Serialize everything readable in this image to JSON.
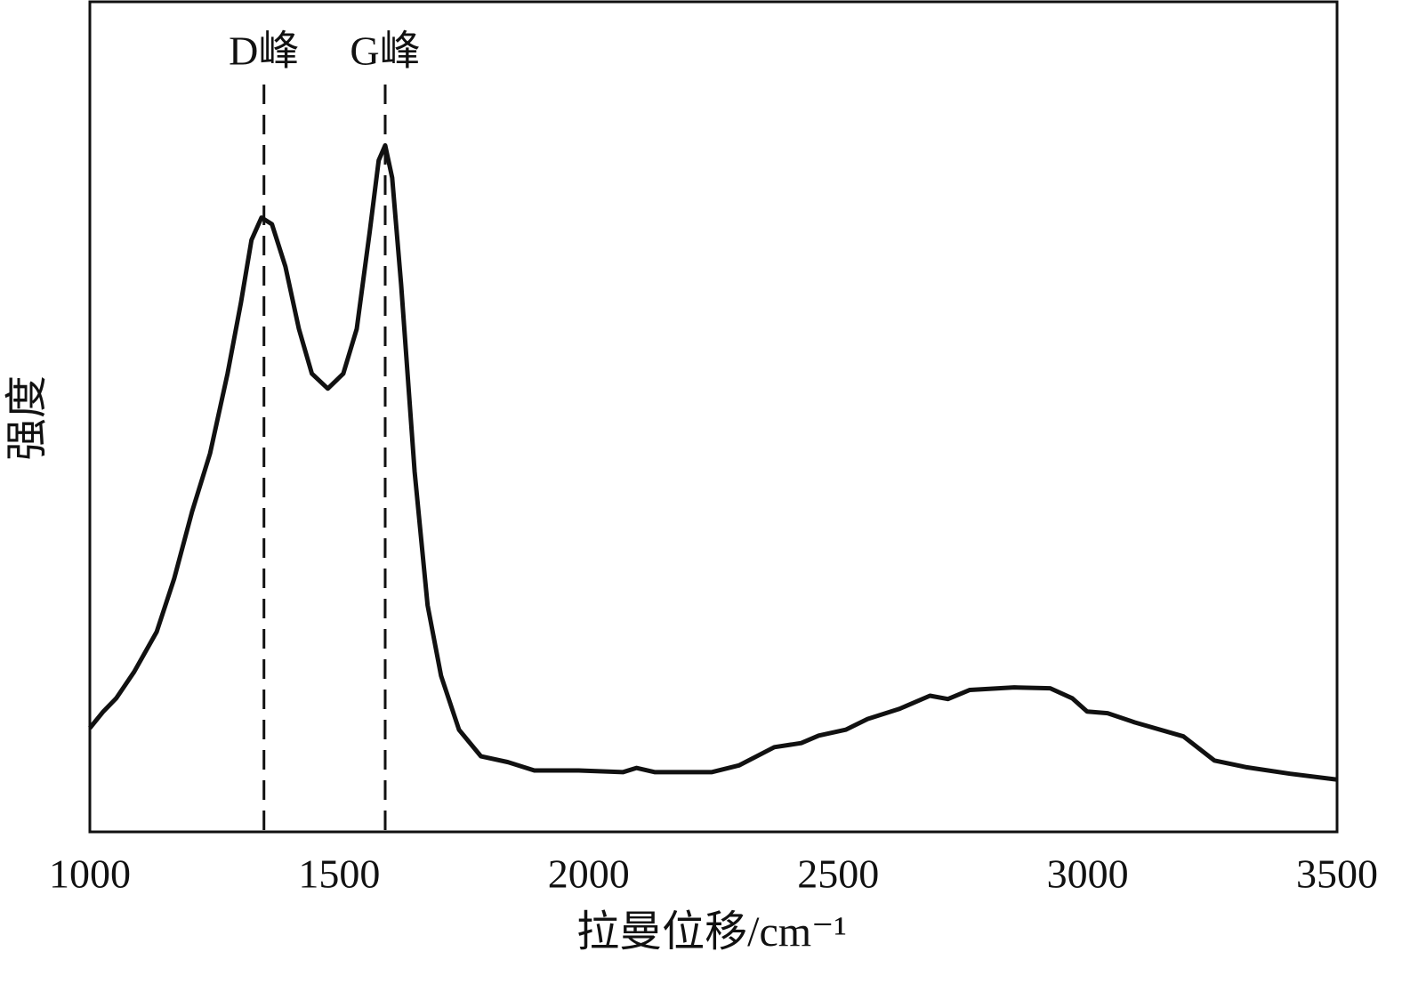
{
  "chart_data": {
    "type": "line",
    "xlabel": "拉曼位移/cm⁻¹",
    "ylabel": "强度",
    "xlim": [
      1000,
      3500
    ],
    "xticks": [
      1000,
      1500,
      2000,
      2500,
      3000,
      3500
    ],
    "ylim": [
      0,
      100
    ],
    "annotations": [
      {
        "label": "D峰",
        "x": 1349
      },
      {
        "label": "G峰",
        "x": 1592
      }
    ],
    "series": [
      {
        "color": "#111111",
        "x": [
          1000,
          1027,
          1053,
          1089,
          1134,
          1169,
          1205,
          1241,
          1276,
          1303,
          1324,
          1344,
          1365,
          1392,
          1419,
          1445,
          1477,
          1508,
          1535,
          1561,
          1579,
          1592,
          1606,
          1624,
          1651,
          1677,
          1704,
          1740,
          1784,
          1838,
          1891,
          1980,
          2069,
          2096,
          2132,
          2247,
          2301,
          2372,
          2426,
          2461,
          2515,
          2559,
          2622,
          2684,
          2720,
          2764,
          2853,
          2925,
          2969,
          2999,
          3040,
          3094,
          3192,
          3254,
          3317,
          3406,
          3500
        ],
        "values": [
          12.5,
          14.5,
          16.1,
          19.3,
          24.1,
          30.5,
          38.6,
          45.6,
          55.2,
          63.8,
          71.3,
          74.0,
          73.2,
          68.1,
          60.6,
          55.2,
          53.4,
          55.2,
          60.6,
          72.3,
          80.9,
          82.7,
          78.8,
          65.9,
          43.4,
          27.3,
          18.8,
          12.3,
          9.1,
          8.4,
          7.4,
          7.4,
          7.2,
          7.7,
          7.2,
          7.2,
          8.0,
          10.2,
          10.7,
          11.6,
          12.3,
          13.6,
          14.8,
          16.4,
          16.0,
          17.1,
          17.4,
          17.3,
          16.1,
          14.5,
          14.3,
          13.2,
          11.5,
          8.6,
          7.8,
          7.0,
          6.3
        ]
      }
    ]
  }
}
